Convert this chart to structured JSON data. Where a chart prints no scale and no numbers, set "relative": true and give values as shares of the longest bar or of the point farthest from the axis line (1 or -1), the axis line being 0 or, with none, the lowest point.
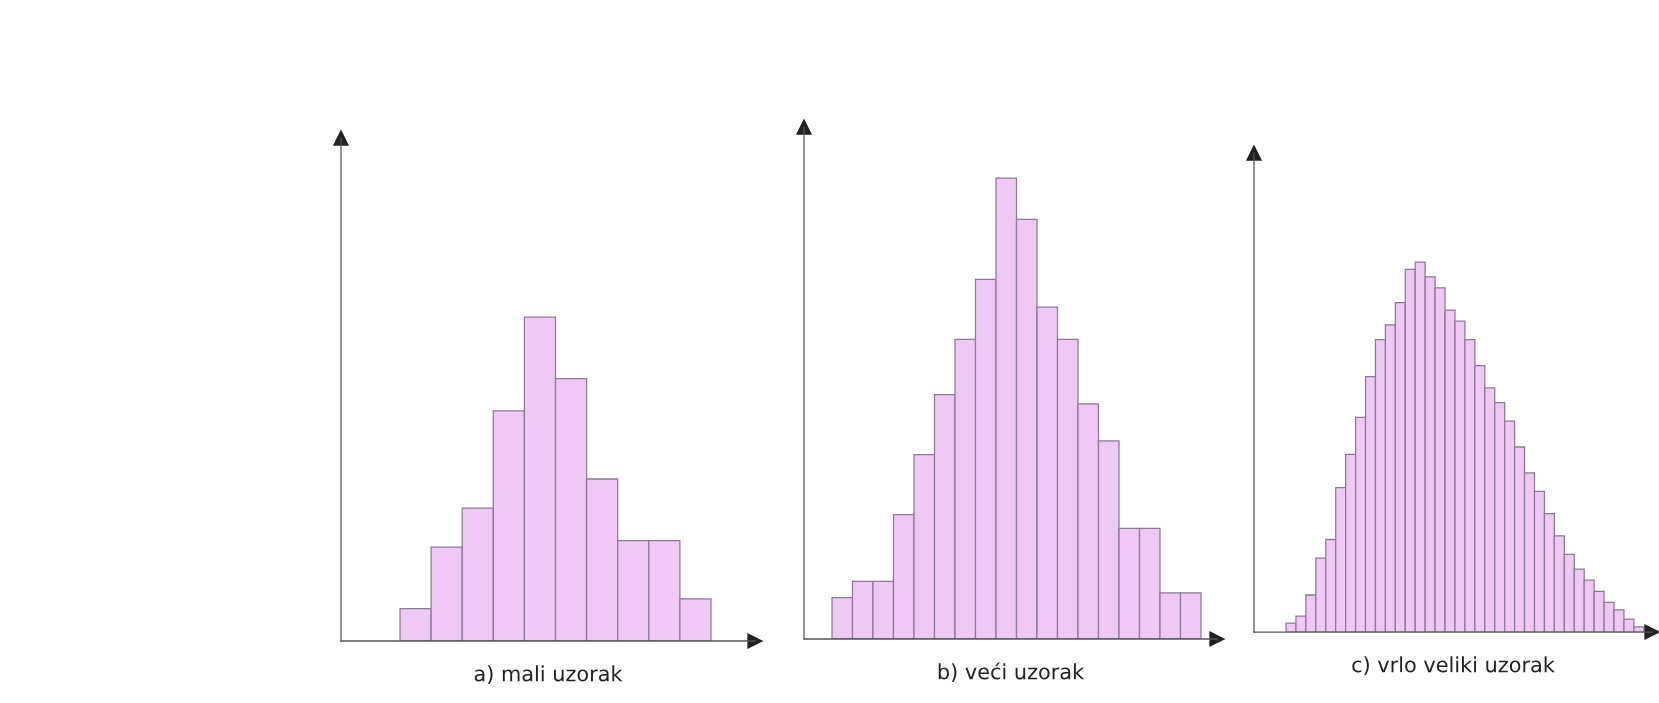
{
  "chart_data": [
    {
      "type": "bar",
      "relative": true,
      "xlabel": "a) mali uzorak",
      "color": "#efc8f6",
      "categories": [
        null,
        null,
        null,
        null,
        null,
        null,
        null,
        null,
        null,
        null
      ],
      "values": [
        0.1,
        0.29,
        0.41,
        0.71,
        1,
        0.81,
        0.5,
        0.31,
        0.31,
        0.13
      ]
    },
    {
      "type": "bar",
      "relative": true,
      "xlabel": "b) veći uzorak",
      "color": "#efc8f6",
      "categories": [
        null,
        null,
        null,
        null,
        null,
        null,
        null,
        null,
        null,
        null,
        null,
        null,
        null,
        null,
        null,
        null,
        null,
        null
      ],
      "values": [
        0.09,
        0.125,
        0.125,
        0.27,
        0.4,
        0.53,
        0.65,
        0.78,
        1,
        0.91,
        0.72,
        0.65,
        0.51,
        0.43,
        0.24,
        0.24,
        0.1,
        0.1
      ]
    },
    {
      "type": "bar",
      "relative": true,
      "xlabel": "c) vrlo veliki uzorak",
      "color": "#efc8f6",
      "categories": [
        null,
        null,
        null,
        null,
        null,
        null,
        null,
        null,
        null,
        null,
        null,
        null,
        null,
        null,
        null,
        null,
        null,
        null,
        null,
        null,
        null,
        null,
        null,
        null,
        null,
        null,
        null,
        null,
        null,
        null,
        null,
        null,
        null,
        null,
        null,
        null
      ],
      "values": [
        0.024,
        0.043,
        0.1,
        0.2,
        0.25,
        0.39,
        0.48,
        0.58,
        0.69,
        0.79,
        0.83,
        0.89,
        0.98,
        1,
        0.96,
        0.93,
        0.87,
        0.84,
        0.79,
        0.72,
        0.66,
        0.62,
        0.57,
        0.5,
        0.43,
        0.38,
        0.32,
        0.26,
        0.21,
        0.17,
        0.14,
        0.11,
        0.08,
        0.06,
        0.035,
        0.014
      ]
    }
  ]
}
